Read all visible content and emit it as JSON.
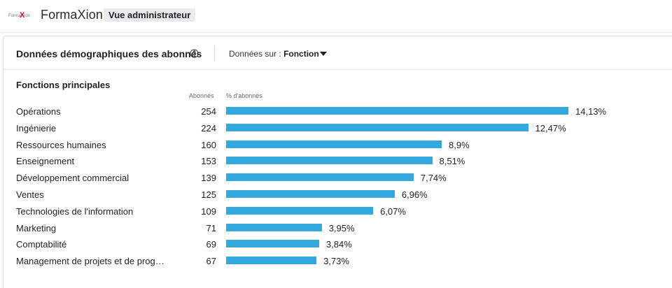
{
  "app": {
    "brand": "FormaXion",
    "badge": "Vue administrateur"
  },
  "card": {
    "title": "Données démographiques des abonnés",
    "data_on_label": "Données sur :",
    "data_on_value": "Fonction"
  },
  "section": {
    "title": "Fonctions principales",
    "col_count": "Abonnés",
    "col_pct": "% d'abonnés"
  },
  "colors": {
    "bar": "#32a8de",
    "logo_red": "#d6001c"
  },
  "chart_data": {
    "type": "bar",
    "orientation": "horizontal",
    "title": "Fonctions principales",
    "xlabel": "% d'abonnés",
    "ylabel": "",
    "xlim": [
      0,
      14.13
    ],
    "categories": [
      "Opérations",
      "Ingénierie",
      "Ressources humaines",
      "Enseignement",
      "Développement commercial",
      "Ventes",
      "Technologies de l'information",
      "Marketing",
      "Comptabilité",
      "Management de projets et de prog…"
    ],
    "counts": [
      "254",
      "224",
      "160",
      "153",
      "139",
      "125",
      "109",
      "71",
      "69",
      "67"
    ],
    "values": [
      14.13,
      12.47,
      8.9,
      8.51,
      7.74,
      6.96,
      6.07,
      3.95,
      3.84,
      3.73
    ],
    "value_labels": [
      "14,13%",
      "12,47%",
      "8,9%",
      "8,51%",
      "7,74%",
      "6,96%",
      "6,07%",
      "3,95%",
      "3,84%",
      "3,73%"
    ]
  }
}
